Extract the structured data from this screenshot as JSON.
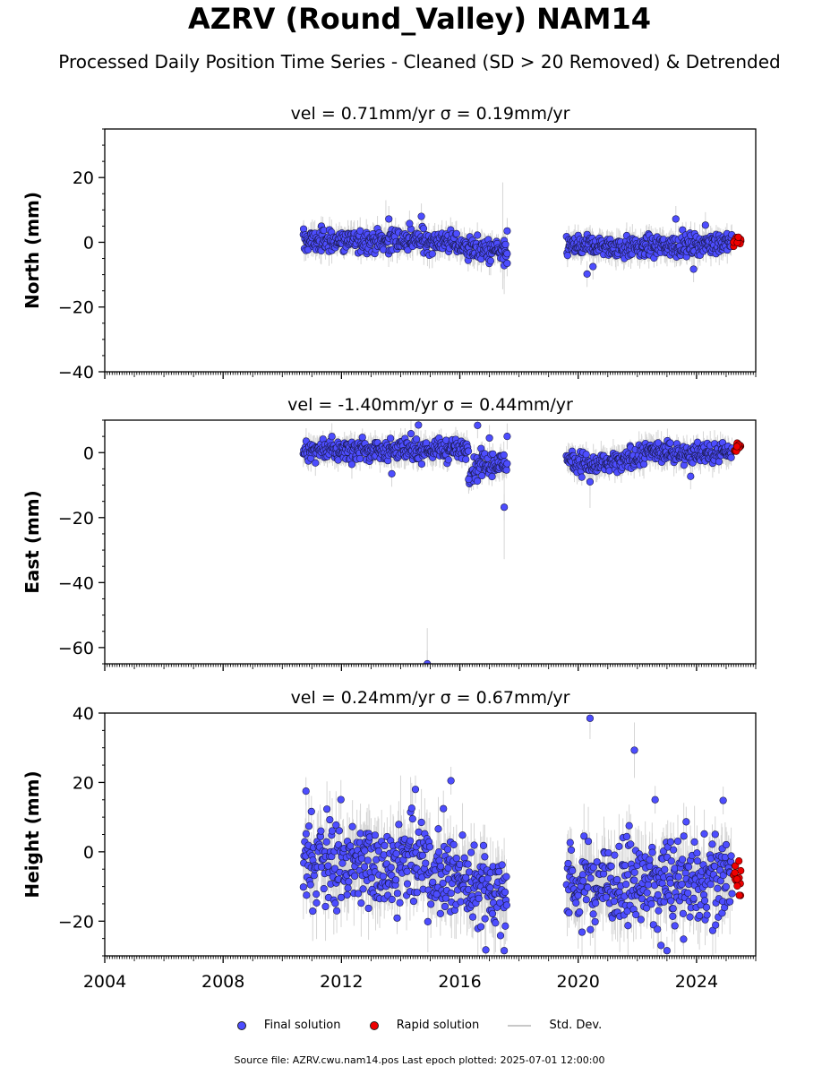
{
  "title": "AZRV (Round_Valley) NAM14",
  "subtitle": "Processed Daily Position Time Series - Cleaned (SD > 20 Removed) & Detrended",
  "legend": {
    "final": "Final solution",
    "rapid": "Rapid solution",
    "std": "Std. Dev."
  },
  "footer": "Source file: AZRV.cwu.nam14.pos  Last epoch plotted: 2025-07-01 12:00:00",
  "colors": {
    "final": "#4d4dff",
    "rapid": "#ee0000",
    "std": "#c8c8c8"
  },
  "chart_data": [
    {
      "type": "scatter",
      "title": "vel = 0.71mm/yr   σ = 0.19mm/yr",
      "ylabel": "North (mm)",
      "xlim": [
        2004,
        2026
      ],
      "ylim": [
        -40,
        35
      ],
      "yticks": [
        -40,
        -20,
        0,
        20
      ],
      "yticklabels": [
        "−40",
        "−20",
        "0",
        "20"
      ],
      "xticks": [
        2004,
        2008,
        2012,
        2016,
        2020,
        2024
      ],
      "xticklabels": [
        "",
        "",
        "",
        "",
        "",
        ""
      ],
      "segments": [
        {
          "start": 2010.7,
          "end": 2017.6,
          "level": [
            [
              2010.7,
              0.5
            ],
            [
              2013.5,
              0.5
            ],
            [
              2015.5,
              0.5
            ],
            [
              2016.5,
              -2.0
            ],
            [
              2017.6,
              -3.5
            ]
          ],
          "spread": 1.8,
          "err": 3
        },
        {
          "start": 2019.6,
          "end": 2025.2,
          "level": [
            [
              2019.6,
              -1.0
            ],
            [
              2022.0,
              -1.5
            ],
            [
              2024.5,
              -0.5
            ],
            [
              2025.2,
              0.5
            ]
          ],
          "spread": 1.6,
          "err": 3
        }
      ],
      "outliers": [
        {
          "x": 2013.6,
          "y": 7.2
        },
        {
          "x": 2014.7,
          "y": 8.0
        },
        {
          "x": 2014.3,
          "y": 5.8
        },
        {
          "x": 2017.6,
          "y": 3.5
        },
        {
          "x": 2017.5,
          "y": -7.2
        },
        {
          "x": 2017.6,
          "y": -6.5
        },
        {
          "x": 2020.3,
          "y": -9.8
        },
        {
          "x": 2020.5,
          "y": -7.5
        },
        {
          "x": 2023.3,
          "y": 7.2
        },
        {
          "x": 2024.3,
          "y": 5.3
        },
        {
          "x": 2023.9,
          "y": -8.3
        }
      ],
      "rapid": {
        "start": 2025.25,
        "end": 2025.5,
        "center": 0.0,
        "range": [
          -1.5,
          1.8
        ]
      },
      "spikes": [
        {
          "x": 2017.45,
          "y": 2.0,
          "err": 16.5
        },
        {
          "x": 2017.5,
          "y": -6.0,
          "err": 10
        },
        {
          "x": 2013.5,
          "y": 5.0,
          "err": 8
        }
      ]
    },
    {
      "type": "scatter",
      "title": "vel = -1.40mm/yr   σ = 0.44mm/yr",
      "ylabel": "East (mm)",
      "xlim": [
        2004,
        2026
      ],
      "ylim": [
        -65,
        10
      ],
      "yticks": [
        -60,
        -40,
        -20,
        0
      ],
      "yticklabels": [
        "−60",
        "−40",
        "−20",
        "0"
      ],
      "xticks": [
        2004,
        2008,
        2012,
        2016,
        2020,
        2024
      ],
      "xticklabels": [
        "",
        "",
        "",
        "",
        "",
        ""
      ],
      "segments": [
        {
          "start": 2010.7,
          "end": 2016.3,
          "level": [
            [
              2010.7,
              0.5
            ],
            [
              2013.0,
              0.8
            ],
            [
              2016.3,
              1.0
            ]
          ],
          "spread": 1.7,
          "err": 3
        },
        {
          "start": 2016.3,
          "end": 2017.6,
          "level": [
            [
              2016.3,
              -6.5
            ],
            [
              2016.7,
              -4.0
            ],
            [
              2017.6,
              -3.5
            ]
          ],
          "spread": 1.8,
          "err": 3
        },
        {
          "start": 2019.6,
          "end": 2025.2,
          "level": [
            [
              2019.6,
              -1.5
            ],
            [
              2020.5,
              -4.0
            ],
            [
              2021.5,
              -3.0
            ],
            [
              2022.5,
              0.5
            ],
            [
              2024.0,
              -0.5
            ],
            [
              2025.2,
              0.5
            ]
          ],
          "spread": 1.6,
          "err": 3
        }
      ],
      "outliers": [
        {
          "x": 2014.6,
          "y": 8.5
        },
        {
          "x": 2016.6,
          "y": 8.4
        },
        {
          "x": 2017.6,
          "y": 5.0
        },
        {
          "x": 2017.5,
          "y": -16.8
        },
        {
          "x": 2014.9,
          "y": -65.0
        },
        {
          "x": 2013.7,
          "y": -6.5
        },
        {
          "x": 2016.3,
          "y": -8.2
        },
        {
          "x": 2020.4,
          "y": -9.0
        },
        {
          "x": 2023.8,
          "y": -7.3
        },
        {
          "x": 2022.7,
          "y": 3.0
        },
        {
          "x": 2017.0,
          "y": 4.5
        }
      ],
      "rapid": {
        "start": 2025.25,
        "end": 2025.5,
        "center": 1.5,
        "range": [
          0.0,
          3.0
        ]
      },
      "spikes": [
        {
          "x": 2017.5,
          "y": -16.8,
          "err": 16
        },
        {
          "x": 2014.9,
          "y": -60.0,
          "err": 6
        },
        {
          "x": 2020.4,
          "y": -12.0,
          "err": 5
        }
      ]
    },
    {
      "type": "scatter",
      "title": "vel = 0.24mm/yr   σ = 0.67mm/yr",
      "ylabel": "Height (mm)",
      "xlim": [
        2004,
        2026
      ],
      "ylim": [
        -30,
        40
      ],
      "yticks": [
        -20,
        0,
        20,
        40
      ],
      "yticklabels": [
        "−20",
        "0",
        "20",
        "40"
      ],
      "xticks": [
        2004,
        2008,
        2012,
        2016,
        2020,
        2024
      ],
      "xticklabels": [
        "2004",
        "2008",
        "2012",
        "2016",
        "2020",
        "2024"
      ],
      "segments": [
        {
          "start": 2010.7,
          "end": 2017.6,
          "level": [
            [
              2010.7,
              -2.0
            ],
            [
              2012.5,
              -3.0
            ],
            [
              2014.5,
              -3.0
            ],
            [
              2016.0,
              -8.0
            ],
            [
              2017.6,
              -12.0
            ]
          ],
          "spread": 6.5,
          "err": 7
        },
        {
          "start": 2019.6,
          "end": 2025.2,
          "level": [
            [
              2019.6,
              -9.0
            ],
            [
              2022.0,
              -9.0
            ],
            [
              2024.0,
              -8.5
            ],
            [
              2025.2,
              -8.0
            ]
          ],
          "spread": 6.0,
          "err": 7
        }
      ],
      "outliers": [
        {
          "x": 2020.4,
          "y": 38.5
        },
        {
          "x": 2021.9,
          "y": 29.3
        },
        {
          "x": 2015.7,
          "y": 20.5
        },
        {
          "x": 2010.8,
          "y": 17.5
        },
        {
          "x": 2017.5,
          "y": -28.5
        },
        {
          "x": 2022.8,
          "y": -27.0
        },
        {
          "x": 2023.0,
          "y": -28.5
        },
        {
          "x": 2014.5,
          "y": 18.0
        },
        {
          "x": 2022.6,
          "y": 15.0
        },
        {
          "x": 2024.9,
          "y": 14.8
        }
      ],
      "rapid": {
        "start": 2025.25,
        "end": 2025.5,
        "center": -8.0,
        "range": [
          -13.5,
          -2.5
        ]
      },
      "spikes": [
        {
          "x": 2020.4,
          "y": 38.5,
          "err": 6
        },
        {
          "x": 2021.9,
          "y": 29.3,
          "err": 8
        },
        {
          "x": 2014.0,
          "y": 10.0,
          "err": 12
        },
        {
          "x": 2017.5,
          "y": -12.0,
          "err": 16
        }
      ]
    }
  ]
}
